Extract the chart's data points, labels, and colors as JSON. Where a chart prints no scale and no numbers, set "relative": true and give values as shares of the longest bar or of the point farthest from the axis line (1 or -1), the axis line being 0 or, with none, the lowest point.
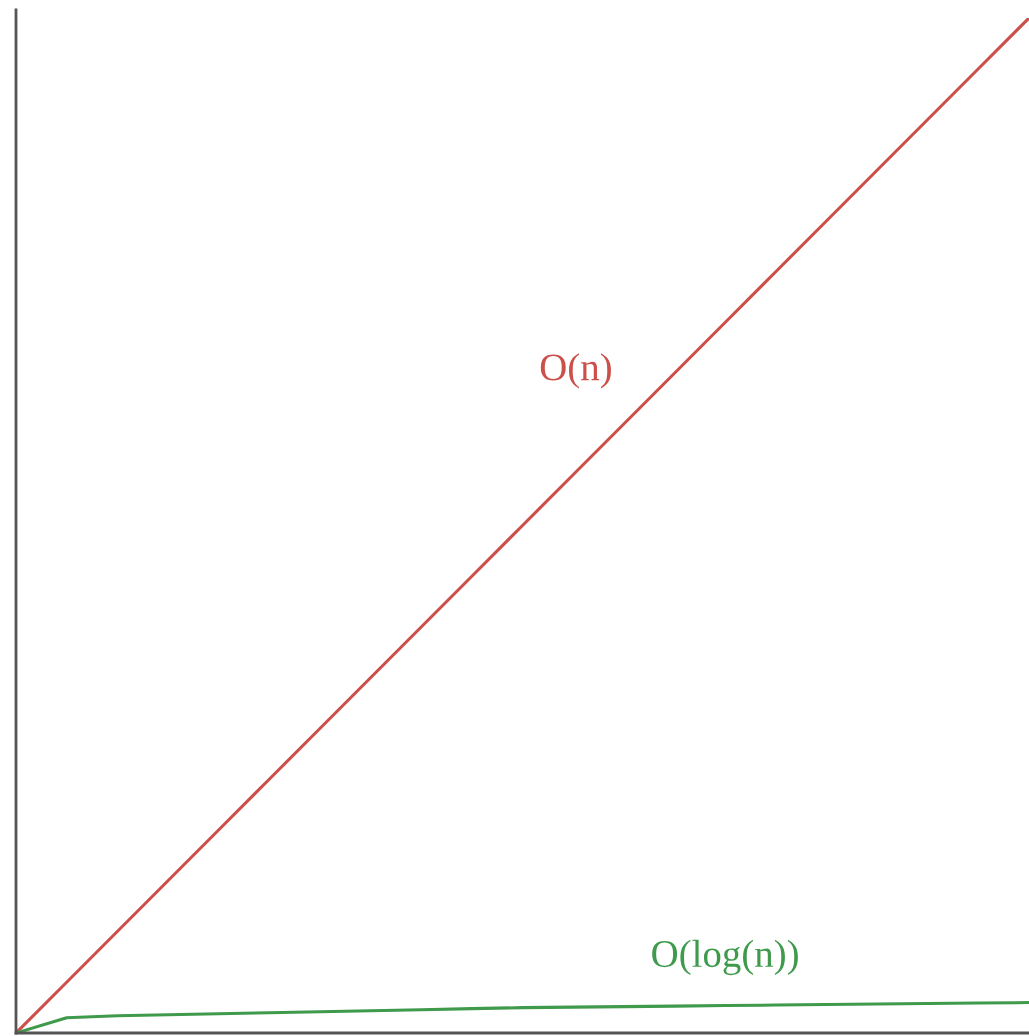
{
  "chart_data": {
    "type": "line",
    "relative": true,
    "categories": [
      null,
      null,
      null,
      null,
      null,
      null,
      null,
      null,
      null,
      null,
      null,
      null,
      null,
      null,
      null,
      null,
      null,
      null,
      null,
      null,
      null
    ],
    "series": [
      {
        "name": "O(n)",
        "color": "#cc4f4a",
        "values": [
          0,
          0.05,
          0.1,
          0.15,
          0.2,
          0.25,
          0.3,
          0.35,
          0.4,
          0.45,
          0.5,
          0.55,
          0.6,
          0.65,
          0.7,
          0.75,
          0.8,
          0.85,
          0.9,
          0.95,
          1
        ]
      },
      {
        "name": "O(log(n))",
        "color": "#3f9a4c",
        "values": [
          0,
          0.015,
          0.017,
          0.018,
          0.019,
          0.02,
          0.021,
          0.022,
          0.023,
          0.024,
          0.025,
          0.0255,
          0.026,
          0.0265,
          0.027,
          0.0275,
          0.028,
          0.0285,
          0.029,
          0.0295,
          0.03
        ]
      }
    ],
    "legend": false,
    "marker": "none",
    "line_style": "solid",
    "tick_labels": false
  }
}
